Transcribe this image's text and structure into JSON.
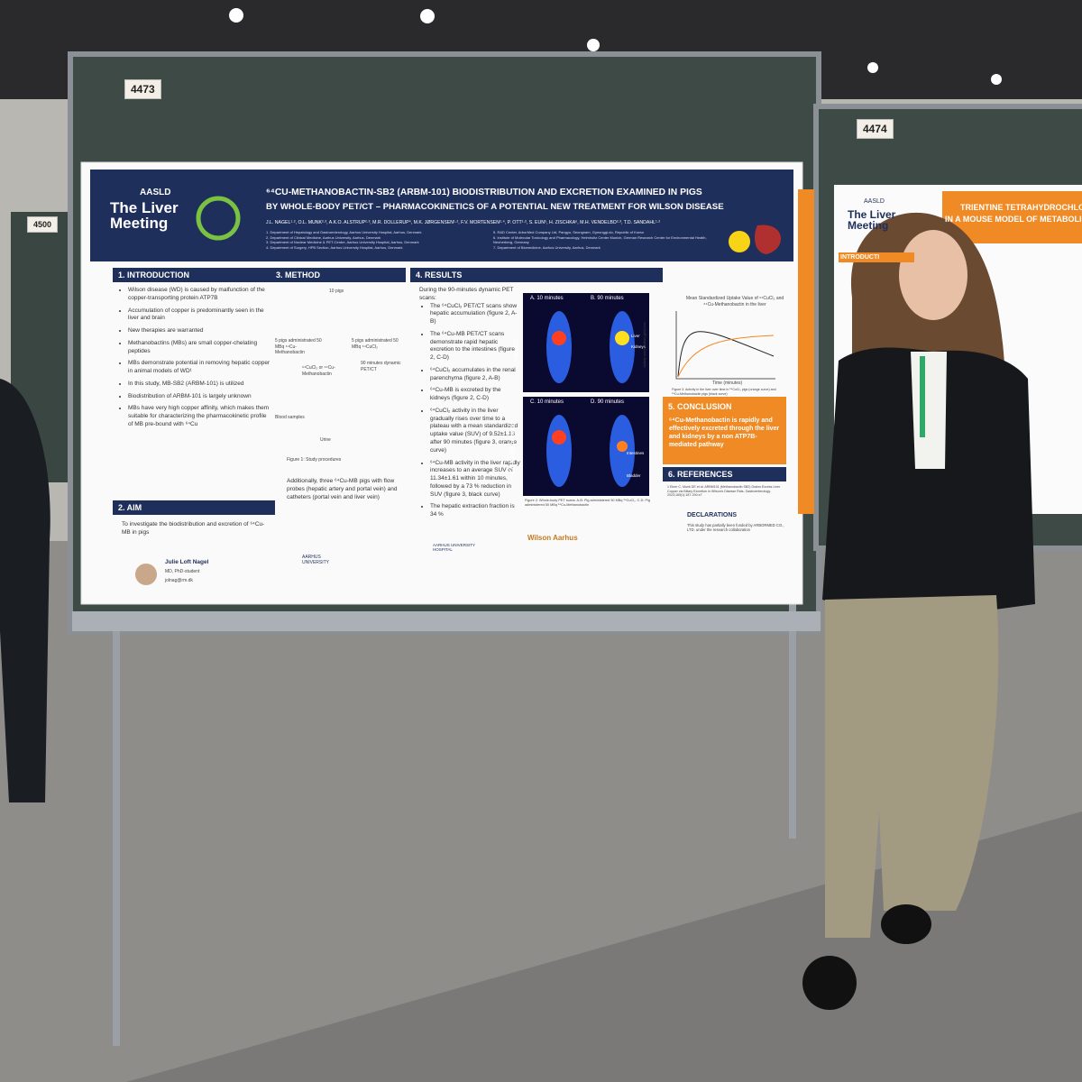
{
  "boards": {
    "left": "4473",
    "right": "4474",
    "back": "4500"
  },
  "poster": {
    "logo": {
      "org": "AASLD",
      "name": "The Liver Meeting"
    },
    "title": [
      "⁶⁴CU-METHANOBACTIN-SB2 (ARBM-101) BIODISTRIBUTION AND EXCRETION EXAMINED IN PIGS",
      "BY WHOLE-BODY PET/CT – PHARMACOKINETICS OF A POTENTIAL NEW TREATMENT FOR WILSON DISEASE"
    ],
    "authors": "J.L. NAGEL¹·², O.L. MUNK²·³, A.K.O. ALSTRUP²·³, M.R. DOLLERUP⁴, M.K. JØRGENSEN¹·², F.V. MORTENSEN²·⁴, P. OTT¹·², S. EUN⁵, H. ZISCHKA⁶, M.H. VENDELBO²·³, T.D. SANDAHL¹·²",
    "affiliations": [
      "1. Department of Hepatology and Gastroenterology, Aarhus University Hospital, Aarhus, Denmark",
      "2. Department of Clinical Medicine, Aarhus University, Aarhus, Denmark",
      "3. Department of Nuclear Medicine & PET-Centre, Aarhus University Hospital, Aarhus, Denmark",
      "4. Department of Surgery, HPB Section, Aarhus University Hospital, Aarhus, Denmark",
      "5. R&D Center, ArborMed Company Ltd, Pangyo, Seongnam, Gyeonggi-do, Republic of Korea",
      "6. Institute of Molecular Toxicology and Pharmacology, Helmholtz Center Munich, German Research Center for Environmental Health, Neuherberg, Germany",
      "7. Department of Biomedicine, Aarhus University, Aarhus, Denmark"
    ],
    "introduction": {
      "heading": "1. INTRODUCTION",
      "bullets": [
        "Wilson disease (WD) is caused by malfunction of the copper-transporting protein ATP7B",
        "Accumulation of copper is predominantly seen in the liver and brain",
        "New therapies are warranted",
        "Methanobactins (MBs) are small copper-chelating peptides",
        "MBs demonstrate potential in removing hepatic copper in animal models of WD¹",
        "In this study, MB-SB2 (ARBM-101) is utilized",
        "Biodistribution of ARBM-101 is largely unknown",
        "MBs have very high copper affinity, which makes them suitable for characterizing the pharmacokinetic profile of MB pre-bound with ⁶⁴Cu"
      ]
    },
    "aim": {
      "heading": "2. AIM",
      "text": "To investigate the biodistribution and excretion of ⁶⁴Cu-MB in pigs"
    },
    "method": {
      "heading": "3. METHOD",
      "labels": [
        "10 pigs",
        "5 pigs administrated 50 MBq ⁶⁴Cu-Methanobactin",
        "5 pigs administrated 50 MBq ⁶⁴CuCl₂",
        "⁶⁴CuCl₂ or ⁶⁴Cu-Methanobactin",
        "90 minutes dynamic PET/CT",
        "Blood samples",
        "Urine"
      ],
      "caption": "Figure 1: Study procedures",
      "text": "Additionally, three ⁶⁴Cu-MB pigs with flow probes (hepatic artery and portal vein) and catheters (portal vein and liver vein)"
    },
    "results": {
      "heading": "4. RESULTS",
      "intro": "During the 90-minutes dynamic PET scans:",
      "bullets": [
        "The ⁶⁴CuCl₂ PET/CT scans show hepatic accumulation (figure 2, A-B)",
        "The ⁶⁴Cu-MB PET/CT scans demonstrate rapid hepatic excretion to the intestines (figure 2, C-D)",
        "⁶⁴CuCl₂ accumulates in the renal parenchyma (figure 2, A-B)",
        "⁶⁴Cu-MB is excreted by the kidneys (figure 2, C-D)",
        "⁶⁴CuCl₂ activity in the liver gradually rises over time to a plateau with a mean standardized uptake value (SUV) of 9.52±1.13 after 90 minutes (figure 3, orange curve)",
        "⁶⁴Cu-MB activity in the liver rapidly increases to an average SUV of 11.34±1.61 within 10 minutes, followed by a 73 % reduction in SUV (figure 3, black curve)",
        "The hepatic extraction fraction is 34 %"
      ],
      "panels": [
        "A. 10 minutes",
        "B. 90 minutes",
        "C. 10 minutes",
        "D. 90 minutes"
      ],
      "tracers": [
        "⁶⁴CuCl₂",
        "⁶⁴Cu-Methanobactin"
      ],
      "organs": [
        "Liver",
        "Kidneys",
        "Intestines",
        "Bladder"
      ],
      "figure2_caption": "Figure 2: Whole-body PET scans. A-B: Pig administered 50 MBq ⁶⁴CuCl₂. C-D: Pig administered 50 MBq ⁶⁴Cu-Methanobactin",
      "graph_title": "Mean Standardized Uptake Value of ⁶⁴CuCl₂ and ⁶⁴Cu-Methanobactin in the liver",
      "graph_xlabel": "Time (minutes)",
      "graph_ylabel": "Activity concentration (g/ml) liver",
      "figure3_caption": "Figure 3: Activity in the liver over time in ⁶⁴CuCl₂ pigs (orange curve) and ⁶⁴Cu-Methanobactin pigs (black curve)"
    },
    "conclusion": {
      "heading": "5. CONCLUSION",
      "text": "⁶⁴Cu-Methanobactin is rapidly and effectively excreted through the liver and kidneys by a non ATP7B-mediated pathway"
    },
    "references": {
      "heading": "6. REFERENCES",
      "text": "1 Einer C, Munk DE et al. ARBM101 (Methanobactin SB2) Drains Excess Liver Copper via Biliary Excretion in Wilson's Disease Rats. Gastroenterology. 2023;165(1):187-200.e7"
    },
    "declarations": {
      "heading": "DECLARATIONS",
      "text": "This study has partially been funded by ARBORMED CO., LTD. under the research collaboration"
    },
    "presenter": {
      "name": "Julie Loft Nagel",
      "role": "MD, PhD-student",
      "email": "jolnag@rm.dk"
    },
    "sponsors": [
      "AARHUS UNIVERSITY",
      "AARHUS UNIVERSITY HOSPITAL",
      "Wilson Aarhus"
    ]
  },
  "neighbor_poster": {
    "logo_org": "AASLD",
    "logo_name": "The Liver Meeting",
    "title": [
      "TRIENTINE TETRAHYDROCHLO",
      "IN A MOUSE MODEL OF METABOLIC"
    ],
    "section": "INTRODUCTI"
  }
}
